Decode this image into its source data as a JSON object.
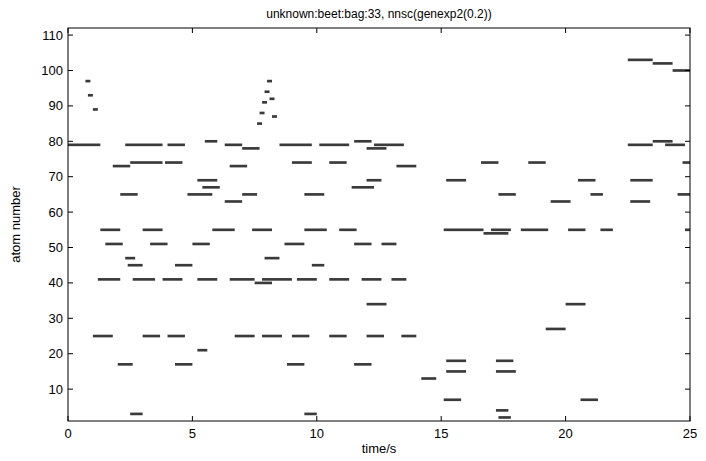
{
  "chart_data": {
    "type": "raster",
    "title": "unknown:beet:bag:33, nnsc(genexp2(0.2))",
    "x_label": "time/s",
    "y_label": "atom number",
    "xlim": [
      0,
      25
    ],
    "xticks": [
      0,
      5,
      10,
      15,
      20,
      25
    ],
    "ylim": [
      1,
      112
    ],
    "yticks": [
      10,
      20,
      30,
      40,
      50,
      60,
      70,
      80,
      90,
      100,
      110
    ],
    "color": "#3a3a3a",
    "events": [
      [
        0,
        1.3,
        79
      ],
      [
        2.3,
        3.8,
        79
      ],
      [
        4,
        4.7,
        79
      ],
      [
        6.3,
        7,
        79
      ],
      [
        8.5,
        9.8,
        79
      ],
      [
        10.1,
        11.3,
        79
      ],
      [
        12.3,
        13.5,
        79
      ],
      [
        22.5,
        23.5,
        79
      ],
      [
        24,
        24.8,
        79
      ],
      [
        5.5,
        6,
        80
      ],
      [
        11.5,
        12.2,
        80
      ],
      [
        23.5,
        24.3,
        80
      ],
      [
        7,
        7.7,
        78
      ],
      [
        12,
        12.8,
        78
      ],
      [
        2.5,
        3.8,
        74
      ],
      [
        3.9,
        4.6,
        74
      ],
      [
        9,
        9.8,
        74
      ],
      [
        10.5,
        11.2,
        74
      ],
      [
        16.6,
        17.3,
        74
      ],
      [
        18.5,
        19.2,
        74
      ],
      [
        24.7,
        25,
        74
      ],
      [
        1.8,
        2.5,
        73
      ],
      [
        6.5,
        7.2,
        73
      ],
      [
        13.2,
        14,
        73
      ],
      [
        5.2,
        6,
        69
      ],
      [
        12,
        12.6,
        69
      ],
      [
        15.2,
        16,
        69
      ],
      [
        20.5,
        21.2,
        69
      ],
      [
        22.6,
        23.5,
        69
      ],
      [
        5.4,
        6.1,
        67
      ],
      [
        11.4,
        12.3,
        67
      ],
      [
        2.1,
        2.8,
        65
      ],
      [
        4.8,
        5.8,
        65
      ],
      [
        7,
        7.6,
        65
      ],
      [
        9.5,
        10.3,
        65
      ],
      [
        17.3,
        18,
        65
      ],
      [
        21,
        21.5,
        65
      ],
      [
        24.5,
        25,
        65
      ],
      [
        6.3,
        7,
        63
      ],
      [
        19.4,
        20.2,
        63
      ],
      [
        22.6,
        23.4,
        63
      ],
      [
        1.3,
        2.1,
        55
      ],
      [
        3,
        3.8,
        55
      ],
      [
        5.8,
        6.7,
        55
      ],
      [
        7.4,
        8.2,
        55
      ],
      [
        9.5,
        10.4,
        55
      ],
      [
        10.9,
        11.6,
        55
      ],
      [
        15.1,
        16.7,
        55
      ],
      [
        17,
        17.8,
        55
      ],
      [
        18.2,
        19.3,
        55
      ],
      [
        20.1,
        20.8,
        55
      ],
      [
        21.4,
        21.9,
        55
      ],
      [
        24.8,
        25,
        55
      ],
      [
        16.7,
        17.7,
        54
      ],
      [
        1.5,
        2.2,
        51
      ],
      [
        3.3,
        4,
        51
      ],
      [
        5,
        5.7,
        51
      ],
      [
        8.7,
        9.5,
        51
      ],
      [
        11.5,
        12.2,
        51
      ],
      [
        12.6,
        13.2,
        51
      ],
      [
        2.3,
        2.7,
        47
      ],
      [
        7.9,
        8.5,
        47
      ],
      [
        2.4,
        3,
        45
      ],
      [
        4.3,
        5,
        45
      ],
      [
        9.8,
        10.3,
        45
      ],
      [
        1.2,
        2.1,
        41
      ],
      [
        2.6,
        3.5,
        41
      ],
      [
        3.8,
        4.6,
        41
      ],
      [
        5.2,
        6,
        41
      ],
      [
        6.5,
        7.5,
        41
      ],
      [
        7.8,
        9,
        41
      ],
      [
        9.2,
        10,
        41
      ],
      [
        10.5,
        11.3,
        41
      ],
      [
        11.8,
        12.6,
        41
      ],
      [
        13,
        13.6,
        41
      ],
      [
        7.5,
        8.2,
        40
      ],
      [
        12,
        12.8,
        34
      ],
      [
        20,
        20.8,
        34
      ],
      [
        19.2,
        20,
        27
      ],
      [
        1,
        1.8,
        25
      ],
      [
        3,
        3.7,
        25
      ],
      [
        4,
        4.7,
        25
      ],
      [
        6.7,
        7.5,
        25
      ],
      [
        7.8,
        8.6,
        25
      ],
      [
        9,
        9.7,
        25
      ],
      [
        10.5,
        11.2,
        25
      ],
      [
        12,
        12.7,
        25
      ],
      [
        13.4,
        14,
        25
      ],
      [
        5.2,
        5.6,
        21
      ],
      [
        15.2,
        16,
        18
      ],
      [
        17.2,
        17.9,
        18
      ],
      [
        2,
        2.6,
        17
      ],
      [
        4.3,
        5,
        17
      ],
      [
        8.8,
        9.5,
        17
      ],
      [
        11.5,
        12.2,
        17
      ],
      [
        15.2,
        16,
        15
      ],
      [
        17.2,
        18,
        15
      ],
      [
        14.2,
        14.8,
        13
      ],
      [
        15.1,
        15.8,
        7
      ],
      [
        20.6,
        21.3,
        7
      ],
      [
        17.2,
        17.7,
        4
      ],
      [
        2.5,
        3,
        3
      ],
      [
        9.5,
        10,
        3
      ],
      [
        17.3,
        17.8,
        2
      ],
      [
        22.5,
        23.5,
        103
      ],
      [
        23.5,
        24.3,
        102
      ],
      [
        24.3,
        25,
        100
      ],
      [
        7.6,
        7.8,
        85
      ],
      [
        7.7,
        7.9,
        88
      ],
      [
        7.8,
        8,
        91
      ],
      [
        7.9,
        8.1,
        94
      ],
      [
        8,
        8.2,
        97
      ],
      [
        8.1,
        8.3,
        92
      ],
      [
        8.2,
        8.4,
        87
      ],
      [
        0.7,
        0.9,
        97
      ],
      [
        0.8,
        1,
        93
      ],
      [
        1,
        1.2,
        89
      ]
    ]
  }
}
